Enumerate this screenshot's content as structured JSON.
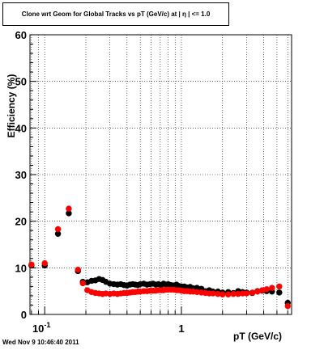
{
  "chart_data": {
    "type": "scatter",
    "title": "Clone wrt Geom for Global Tracks vs pT (GeV/c) at |  η | <= 1.0",
    "xlabel": "pT (GeV/c)",
    "ylabel": "Efficiency (%)",
    "x_scale": "log",
    "xlim": [
      0.078,
      6.4
    ],
    "ylim": [
      0,
      60
    ],
    "y_ticks": [
      "0",
      "10",
      "20",
      "30",
      "40",
      "50",
      "60"
    ],
    "x_tick_labels": [
      {
        "value": 0.1,
        "base": "10",
        "exp": "-1"
      },
      {
        "value": 1,
        "text": "1"
      }
    ],
    "grid": true,
    "series": [
      {
        "color": "#000000",
        "x": [
          0.08,
          0.1,
          0.125,
          0.15,
          0.175,
          0.19,
          0.205,
          0.22,
          0.235,
          0.25,
          0.265,
          0.28,
          0.3,
          0.32,
          0.34,
          0.36,
          0.38,
          0.4,
          0.42,
          0.44,
          0.46,
          0.48,
          0.5,
          0.53,
          0.56,
          0.59,
          0.62,
          0.65,
          0.68,
          0.71,
          0.74,
          0.77,
          0.8,
          0.84,
          0.88,
          0.92,
          0.96,
          1.0,
          1.05,
          1.1,
          1.16,
          1.22,
          1.3,
          1.4,
          1.5,
          1.6,
          1.7,
          1.85,
          2.0,
          2.2,
          2.4,
          2.6,
          2.8,
          3.0,
          3.3,
          3.6,
          3.9,
          4.2,
          4.6,
          5.2,
          6.0
        ],
        "y": [
          10.5,
          10.5,
          17.3,
          21.7,
          9.3,
          7.0,
          6.9,
          7.2,
          7.3,
          7.6,
          7.4,
          7.0,
          6.6,
          6.5,
          6.4,
          6.5,
          6.3,
          6.2,
          6.4,
          6.5,
          6.4,
          6.3,
          6.5,
          6.6,
          6.4,
          6.5,
          6.6,
          6.4,
          6.5,
          6.3,
          6.6,
          6.4,
          6.5,
          6.3,
          6.2,
          6.4,
          6.1,
          6.0,
          6.0,
          5.8,
          5.9,
          5.6,
          5.7,
          5.5,
          5.0,
          5.2,
          4.9,
          4.9,
          4.7,
          4.8,
          4.6,
          5.0,
          4.8,
          4.7,
          4.6,
          5.0,
          5.1,
          5.0,
          4.9,
          4.7,
          2.5
        ]
      },
      {
        "color": "#ff0000",
        "x": [
          0.08,
          0.1,
          0.125,
          0.15,
          0.175,
          0.19,
          0.205,
          0.22,
          0.235,
          0.25,
          0.265,
          0.28,
          0.3,
          0.32,
          0.34,
          0.36,
          0.38,
          0.4,
          0.42,
          0.44,
          0.46,
          0.48,
          0.5,
          0.53,
          0.56,
          0.59,
          0.62,
          0.65,
          0.68,
          0.71,
          0.74,
          0.77,
          0.8,
          0.84,
          0.88,
          0.92,
          0.96,
          1.0,
          1.05,
          1.1,
          1.16,
          1.22,
          1.3,
          1.4,
          1.5,
          1.6,
          1.7,
          1.85,
          2.0,
          2.2,
          2.4,
          2.6,
          2.8,
          3.0,
          3.3,
          3.6,
          3.9,
          4.2,
          4.6,
          5.2,
          6.0
        ],
        "y": [
          10.7,
          11.0,
          18.3,
          22.7,
          9.6,
          6.7,
          5.2,
          4.8,
          4.6,
          4.5,
          4.4,
          4.5,
          4.4,
          4.5,
          4.4,
          4.5,
          4.6,
          4.6,
          4.7,
          4.8,
          4.8,
          4.9,
          4.9,
          5.0,
          5.0,
          5.1,
          5.1,
          5.1,
          5.2,
          5.2,
          5.2,
          5.3,
          5.3,
          5.3,
          5.3,
          5.2,
          5.2,
          5.1,
          5.0,
          5.0,
          4.9,
          4.9,
          4.8,
          4.7,
          4.6,
          4.5,
          4.5,
          4.4,
          4.3,
          4.3,
          4.4,
          4.4,
          4.5,
          4.5,
          4.7,
          4.9,
          5.2,
          5.4,
          5.7,
          6.0,
          1.8
        ]
      }
    ]
  },
  "footer": {
    "timestamp": "Wed Nov  9 10:46:40 2011"
  }
}
